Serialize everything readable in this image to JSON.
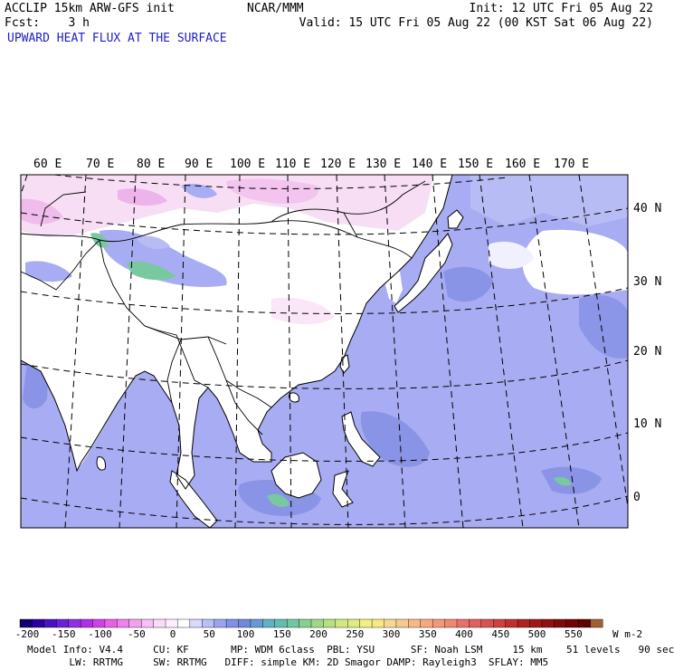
{
  "header": {
    "model": "ACCLIP 15km ARW-GFS init",
    "fcst": "Fcst:    3 h",
    "field": "UPWARD HEAT FLUX AT THE SURFACE",
    "center": "NCAR/MMM",
    "init": "Init: 12 UTC Fri 05 Aug 22",
    "valid": "Valid: 15 UTC Fri 05 Aug 22 (00 KST Sat 06 Aug 22)"
  },
  "map": {
    "lon_labels": [
      "60 E",
      "70 E",
      "80 E",
      "90 E",
      "100 E",
      "110 E",
      "120 E",
      "130 E",
      "140 E",
      "150 E",
      "160 E",
      "170 E"
    ],
    "lat_labels": [
      "40 N",
      "30 N",
      "20 N",
      "10 N",
      "0"
    ],
    "colors": {
      "land_white": "#ffffff",
      "ocean_low": "#aaaaf0",
      "ocean_mid": "#8c96e8",
      "pink": "#f4c8f0",
      "green": "#78c8a0"
    }
  },
  "colorbar": {
    "ticks": [
      "-200",
      "-150",
      "-100",
      "-50",
      "0",
      "50",
      "100",
      "150",
      "200",
      "250",
      "300",
      "350",
      "400",
      "450",
      "500",
      "550"
    ],
    "unit": "W m-2",
    "colors": [
      "#100070",
      "#2a00a0",
      "#4a10c0",
      "#6a20d8",
      "#9030e0",
      "#b030e8",
      "#d040e8",
      "#e860e8",
      "#f080f0",
      "#f4a0f0",
      "#f8c0f4",
      "#fadcf8",
      "#ffeefc",
      "#ffffff",
      "#d8d8fa",
      "#b8c0f4",
      "#98a4ec",
      "#8090e4",
      "#7088dc",
      "#6898d8",
      "#60b0c8",
      "#60c0b0",
      "#70c8a0",
      "#88d090",
      "#a0d888",
      "#b8e080",
      "#d0e880",
      "#e0ec80",
      "#f0f080",
      "#f8e880",
      "#f8d890",
      "#f8c890",
      "#f8b888",
      "#f8a880",
      "#f49878",
      "#f08870",
      "#e87068",
      "#e06060",
      "#d85050",
      "#d04040",
      "#c03030",
      "#b02020",
      "#a01818",
      "#901010",
      "#800808",
      "#700404",
      "#600000",
      "#a06030"
    ]
  },
  "footer": {
    "line1": "Model Info: V4.4     CU: KF       MP: WDM 6class  PBL: YSU      SF: Noah LSM     15 km    51 levels   90 sec",
    "line2": "       LW: RRTMG     SW: RRTMG   DIFF: simple KM: 2D Smagor DAMP: Rayleigh3  SFLAY: MM5"
  }
}
